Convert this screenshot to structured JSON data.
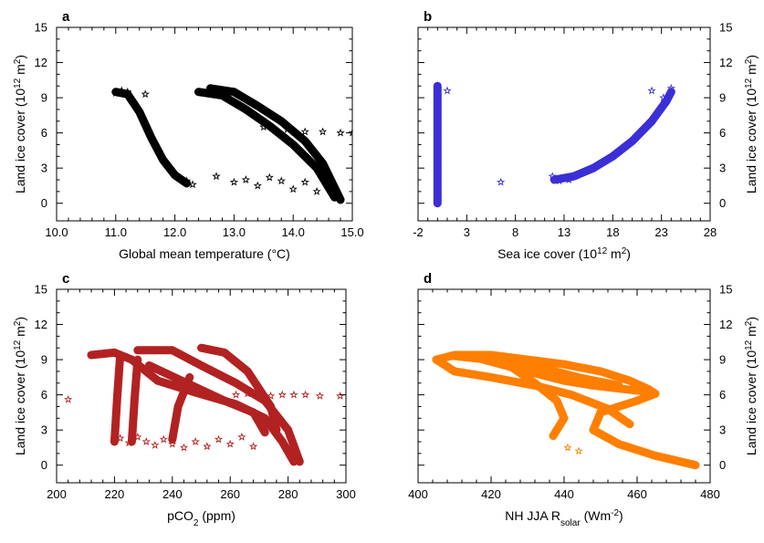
{
  "figure": {
    "panels": [
      "a",
      "b",
      "c",
      "d"
    ]
  },
  "chart_data": [
    {
      "panel": "a",
      "type": "scatter",
      "marker": "star",
      "color": "#000000",
      "xlabel": "Global mean temperature (°C)",
      "ylabel_left": "Land ice cover (10^12 m^2)",
      "xlim": [
        10.0,
        15.0
      ],
      "ylim": [
        -1.5,
        15
      ],
      "xticks": [
        10.0,
        11.0,
        12.0,
        13.0,
        14.0,
        15.0
      ],
      "xtick_labels": [
        "10.0",
        "11.0",
        "12.0",
        "13.0",
        "14.0",
        "15.0"
      ],
      "yticks": [
        0,
        3,
        6,
        9,
        12,
        15
      ],
      "ytick_labels": [
        "0",
        "3",
        "6",
        "9",
        "12",
        "15"
      ],
      "ylabel_side": "left",
      "grid": false,
      "polylines": [
        [
          [
            11.0,
            9.5
          ],
          [
            11.2,
            9.3
          ],
          [
            11.4,
            7.8
          ],
          [
            11.6,
            5.6
          ],
          [
            11.8,
            3.7
          ],
          [
            12.0,
            2.4
          ],
          [
            12.2,
            1.7
          ]
        ],
        [
          [
            12.4,
            9.5
          ],
          [
            12.8,
            9.2
          ],
          [
            13.2,
            8.0
          ],
          [
            13.6,
            6.6
          ],
          [
            14.0,
            5.0
          ],
          [
            14.4,
            3.0
          ],
          [
            14.7,
            0.5
          ]
        ],
        [
          [
            12.6,
            9.8
          ],
          [
            13.0,
            9.5
          ],
          [
            13.4,
            8.3
          ],
          [
            13.8,
            7.0
          ],
          [
            14.2,
            5.3
          ],
          [
            14.5,
            3.4
          ],
          [
            14.8,
            0.3
          ]
        ]
      ],
      "points": [
        {
          "x": 11.0,
          "y": 9.4
        },
        {
          "x": 11.1,
          "y": 9.6
        },
        {
          "x": 11.2,
          "y": 9.5
        },
        {
          "x": 11.5,
          "y": 9.3
        },
        {
          "x": 12.2,
          "y": 1.9
        },
        {
          "x": 12.3,
          "y": 1.6
        },
        {
          "x": 12.7,
          "y": 2.3
        },
        {
          "x": 13.0,
          "y": 1.8
        },
        {
          "x": 13.2,
          "y": 2.0
        },
        {
          "x": 13.4,
          "y": 1.5
        },
        {
          "x": 13.6,
          "y": 2.2
        },
        {
          "x": 13.8,
          "y": 1.9
        },
        {
          "x": 14.0,
          "y": 1.2
        },
        {
          "x": 14.2,
          "y": 1.8
        },
        {
          "x": 14.4,
          "y": 1.0
        },
        {
          "x": 13.5,
          "y": 6.5
        },
        {
          "x": 13.9,
          "y": 6.3
        },
        {
          "x": 14.2,
          "y": 6.1
        },
        {
          "x": 14.5,
          "y": 6.1
        },
        {
          "x": 14.8,
          "y": 6.0
        },
        {
          "x": 15.0,
          "y": 6.0
        }
      ]
    },
    {
      "panel": "b",
      "type": "scatter",
      "marker": "star",
      "color": "#3b2fd6",
      "xlabel": "Sea ice cover (10^12 m^2)",
      "ylabel_right": "Land ice cover (10^12 m^2)",
      "xlim": [
        -2,
        28
      ],
      "ylim": [
        -1.5,
        15
      ],
      "xticks": [
        -2,
        3,
        8,
        13,
        18,
        23,
        28
      ],
      "xtick_labels": [
        "-2",
        "3",
        "8",
        "13",
        "18",
        "23",
        "28"
      ],
      "yticks": [
        0,
        3,
        6,
        9,
        12,
        15
      ],
      "ytick_labels": [
        "0",
        "3",
        "6",
        "9",
        "12",
        "15"
      ],
      "ylabel_side": "right",
      "grid": false,
      "polylines": [
        [
          [
            0.0,
            0.0
          ],
          [
            0.0,
            10.0
          ]
        ],
        [
          [
            12.0,
            2.0
          ],
          [
            14.0,
            2.3
          ],
          [
            16.0,
            3.0
          ],
          [
            18.0,
            4.0
          ],
          [
            20.0,
            5.3
          ],
          [
            22.0,
            7.0
          ],
          [
            23.5,
            8.7
          ],
          [
            24.0,
            9.5
          ]
        ]
      ],
      "points": [
        {
          "x": 1.0,
          "y": 9.6
        },
        {
          "x": 6.5,
          "y": 1.8
        },
        {
          "x": 11.8,
          "y": 2.3
        },
        {
          "x": 12.5,
          "y": 1.9
        },
        {
          "x": 13.5,
          "y": 2.0
        },
        {
          "x": 22.0,
          "y": 9.6
        },
        {
          "x": 24.0,
          "y": 9.8
        },
        {
          "x": 23.2,
          "y": 9.0
        }
      ]
    },
    {
      "panel": "c",
      "type": "scatter",
      "marker": "star",
      "color": "#b22222",
      "xlabel": "pCO2 (ppm)",
      "ylabel_left": "Land ice cover (10^12 m^2)",
      "xlim": [
        200,
        300
      ],
      "ylim": [
        -1.5,
        15
      ],
      "xticks": [
        200,
        220,
        240,
        260,
        280,
        300
      ],
      "xtick_labels": [
        "200",
        "220",
        "240",
        "260",
        "280",
        "300"
      ],
      "yticks": [
        0,
        3,
        6,
        9,
        12,
        15
      ],
      "ytick_labels": [
        "0",
        "3",
        "6",
        "9",
        "12",
        "15"
      ],
      "ylabel_side": "left",
      "grid": false,
      "polylines": [
        [
          [
            212,
            9.4
          ],
          [
            220,
            9.6
          ],
          [
            226,
            9.0
          ],
          [
            235,
            7.2
          ],
          [
            248,
            6.2
          ],
          [
            262,
            5.2
          ],
          [
            272,
            4.0
          ],
          [
            278,
            2.0
          ],
          [
            282,
            0.3
          ]
        ],
        [
          [
            220,
            2.0
          ],
          [
            221,
            6.0
          ],
          [
            222,
            9.4
          ]
        ],
        [
          [
            226,
            2.0
          ],
          [
            227,
            5.8
          ],
          [
            228,
            9.0
          ]
        ],
        [
          [
            228,
            9.8
          ],
          [
            240,
            9.8
          ],
          [
            250,
            8.5
          ],
          [
            262,
            7.0
          ],
          [
            272,
            5.5
          ],
          [
            280,
            3.0
          ],
          [
            284,
            0.3
          ]
        ],
        [
          [
            250,
            10.0
          ],
          [
            258,
            9.6
          ],
          [
            266,
            8.0
          ],
          [
            274,
            5.0
          ],
          [
            276,
            3.0
          ]
        ],
        [
          [
            240,
            2.2
          ],
          [
            242,
            5.0
          ],
          [
            246,
            7.5
          ]
        ],
        [
          [
            232,
            8.5
          ],
          [
            245,
            7.0
          ],
          [
            258,
            5.5
          ],
          [
            268,
            4.5
          ],
          [
            272,
            2.8
          ]
        ]
      ],
      "points": [
        {
          "x": 204,
          "y": 5.6
        },
        {
          "x": 222,
          "y": 2.3
        },
        {
          "x": 225,
          "y": 1.9
        },
        {
          "x": 228,
          "y": 2.4
        },
        {
          "x": 231,
          "y": 2.0
        },
        {
          "x": 234,
          "y": 1.7
        },
        {
          "x": 237,
          "y": 2.2
        },
        {
          "x": 240,
          "y": 1.8
        },
        {
          "x": 244,
          "y": 1.5
        },
        {
          "x": 248,
          "y": 2.0
        },
        {
          "x": 252,
          "y": 1.6
        },
        {
          "x": 256,
          "y": 2.2
        },
        {
          "x": 260,
          "y": 1.8
        },
        {
          "x": 264,
          "y": 2.4
        },
        {
          "x": 268,
          "y": 1.6
        },
        {
          "x": 262,
          "y": 6.0
        },
        {
          "x": 266,
          "y": 6.1
        },
        {
          "x": 270,
          "y": 6.0
        },
        {
          "x": 274,
          "y": 5.9
        },
        {
          "x": 278,
          "y": 6.0
        },
        {
          "x": 282,
          "y": 6.0
        },
        {
          "x": 286,
          "y": 6.0
        },
        {
          "x": 291,
          "y": 5.9
        },
        {
          "x": 298,
          "y": 5.9
        }
      ]
    },
    {
      "panel": "d",
      "type": "scatter",
      "marker": "star",
      "color": "#ff7f00",
      "xlabel": "NH JJA Rsolar (Wm^-2)",
      "ylabel_right": "Land ice cover (10^12 m^2)",
      "xlim": [
        400,
        480
      ],
      "ylim": [
        -1.5,
        15
      ],
      "xticks": [
        400,
        420,
        440,
        460,
        480
      ],
      "xtick_labels": [
        "400",
        "420",
        "440",
        "460",
        "480"
      ],
      "yticks": [
        0,
        3,
        6,
        9,
        12,
        15
      ],
      "ytick_labels": [
        "0",
        "3",
        "6",
        "9",
        "12",
        "15"
      ],
      "ylabel_side": "right",
      "grid": false,
      "polylines": [
        [
          [
            405,
            9.0
          ],
          [
            410,
            9.4
          ],
          [
            420,
            9.4
          ],
          [
            430,
            9.0
          ],
          [
            440,
            8.6
          ],
          [
            450,
            8.0
          ],
          [
            458,
            7.2
          ],
          [
            463,
            6.5
          ],
          [
            465,
            6.1
          ],
          [
            460,
            5.5
          ],
          [
            450,
            4.5
          ],
          [
            448,
            3.0
          ],
          [
            455,
            1.8
          ],
          [
            465,
            0.8
          ],
          [
            476,
            0.0
          ]
        ],
        [
          [
            405,
            9.0
          ],
          [
            410,
            8.0
          ],
          [
            420,
            7.5
          ],
          [
            432,
            6.8
          ],
          [
            442,
            6.0
          ],
          [
            452,
            4.8
          ],
          [
            458,
            3.5
          ]
        ],
        [
          [
            418,
            9.0
          ],
          [
            430,
            8.0
          ],
          [
            440,
            7.2
          ],
          [
            448,
            6.8
          ],
          [
            456,
            6.5
          ],
          [
            462,
            6.3
          ]
        ],
        [
          [
            425,
            8.5
          ],
          [
            432,
            7.0
          ],
          [
            438,
            5.5
          ],
          [
            440,
            4.0
          ],
          [
            437,
            2.5
          ]
        ],
        [
          [
            410,
            9.3
          ],
          [
            425,
            8.8
          ],
          [
            435,
            8.2
          ],
          [
            445,
            7.4
          ],
          [
            455,
            6.8
          ]
        ]
      ],
      "points": [
        {
          "x": 441,
          "y": 1.5
        },
        {
          "x": 444,
          "y": 1.2
        },
        {
          "x": 470,
          "y": 0.5
        },
        {
          "x": 474,
          "y": 0.2
        }
      ]
    }
  ]
}
